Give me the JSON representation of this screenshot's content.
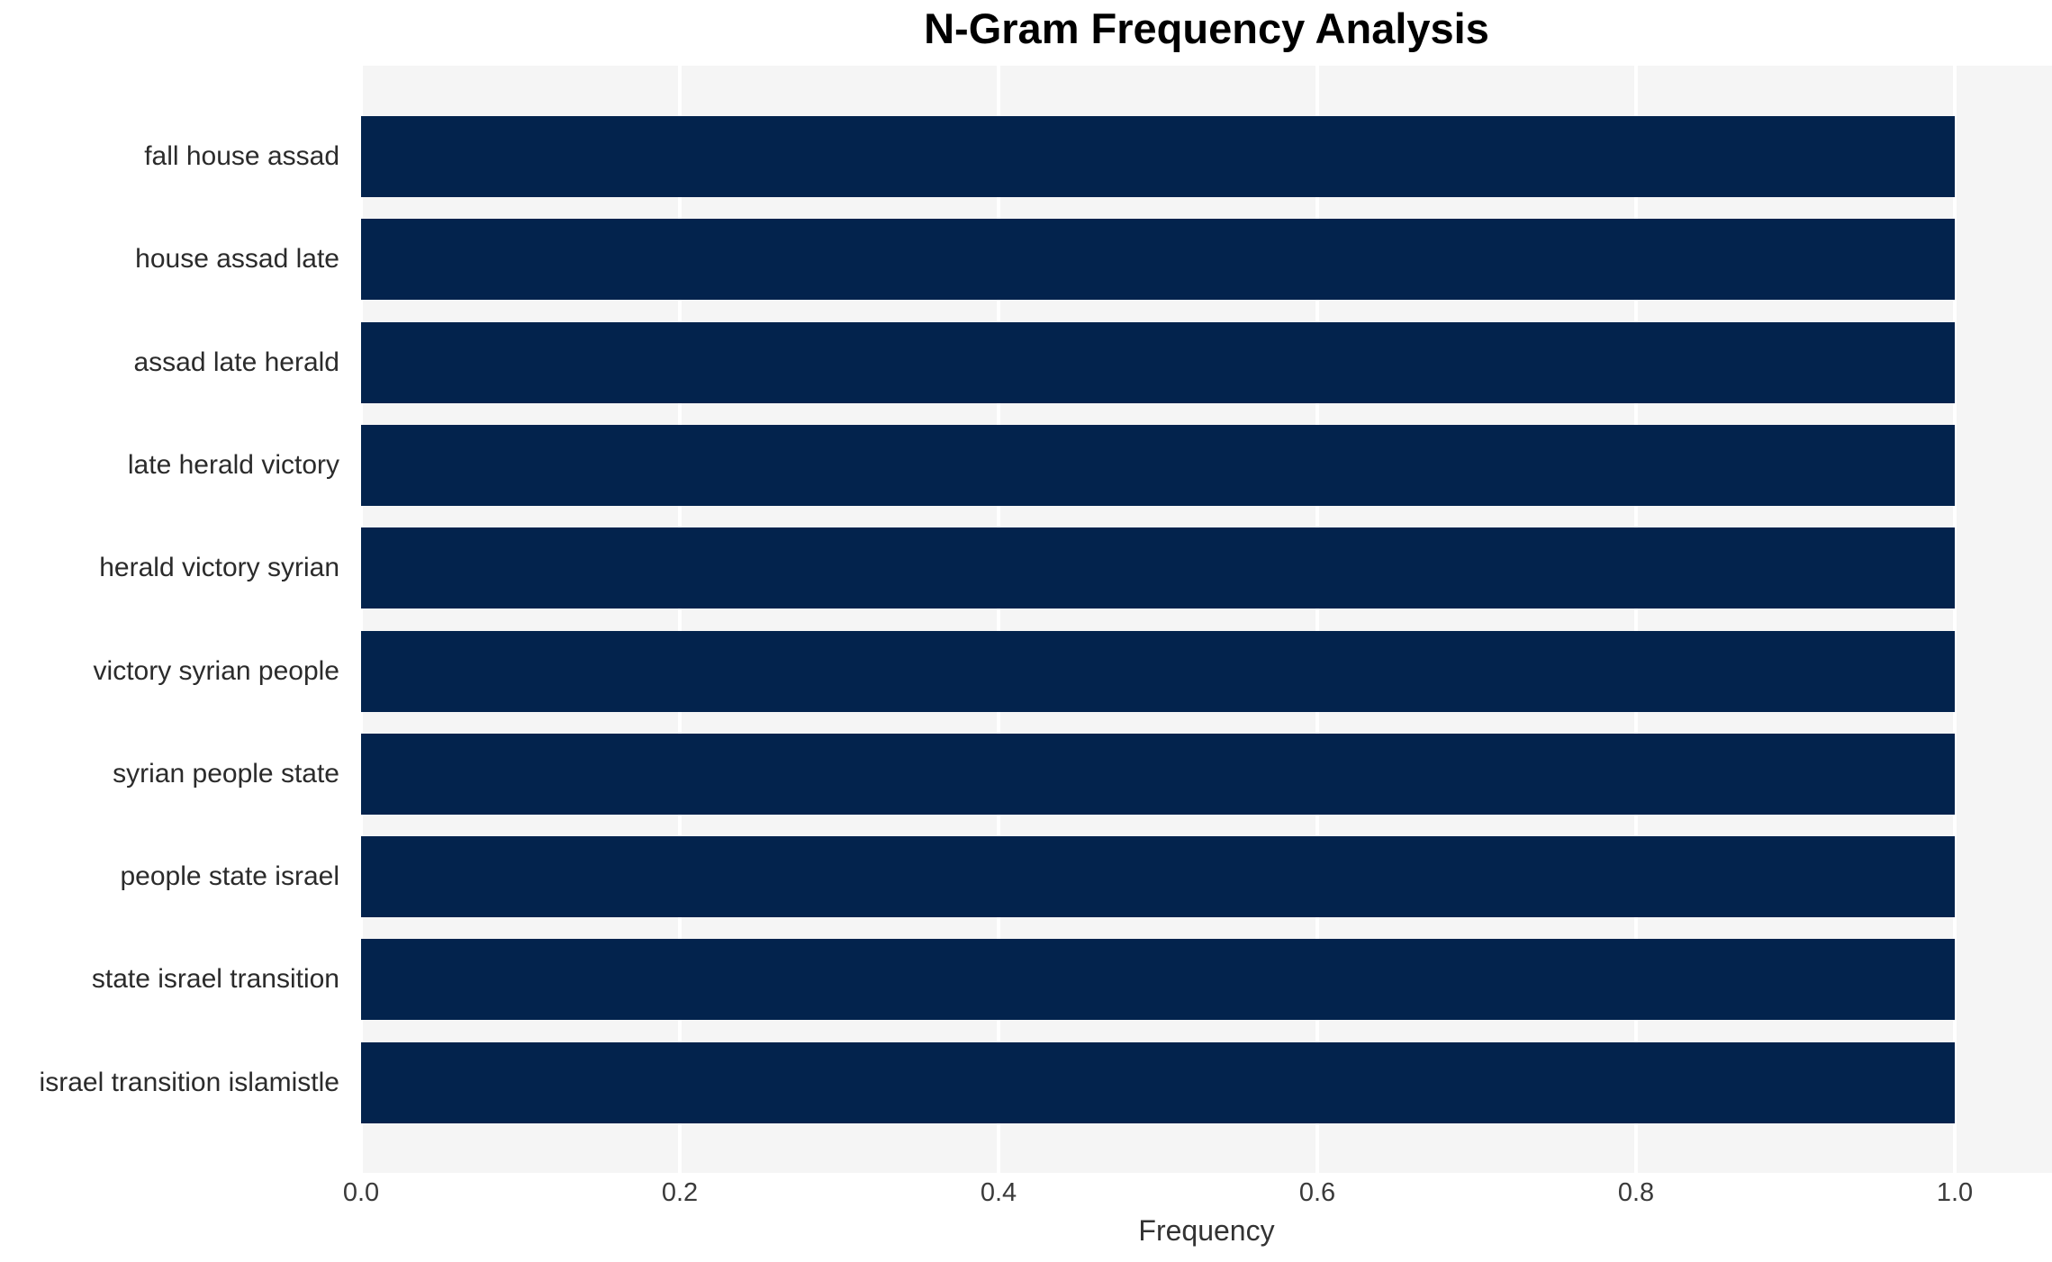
{
  "title": "N-Gram Frequency Analysis",
  "chart_data": {
    "type": "bar",
    "orientation": "horizontal",
    "title": "N-Gram Frequency Analysis",
    "xlabel": "Frequency",
    "ylabel": "",
    "categories": [
      "fall house assad",
      "house assad late",
      "assad late herald",
      "late herald victory",
      "herald victory syrian",
      "victory syrian people",
      "syrian people state",
      "people state israel",
      "state israel transition",
      "israel transition islamistle"
    ],
    "values": [
      1.0,
      1.0,
      1.0,
      1.0,
      1.0,
      1.0,
      1.0,
      1.0,
      1.0,
      1.0
    ],
    "xlim": [
      0.0,
      1.061
    ],
    "xticks": [
      0.0,
      0.2,
      0.4,
      0.6,
      0.8,
      1.0
    ],
    "xtick_labels": [
      "0.0",
      "0.2",
      "0.4",
      "0.6",
      "0.8",
      "1.0"
    ],
    "grid": "vertical white gridlines on light-gray panel",
    "legend": "none",
    "colors": {
      "bar": "#03234d",
      "plot_background": "#f5f5f5",
      "gridline": "#ffffff",
      "figure_background": "#ffffff",
      "title_text": "#000000",
      "axis_text": "#2b2b2b"
    }
  }
}
